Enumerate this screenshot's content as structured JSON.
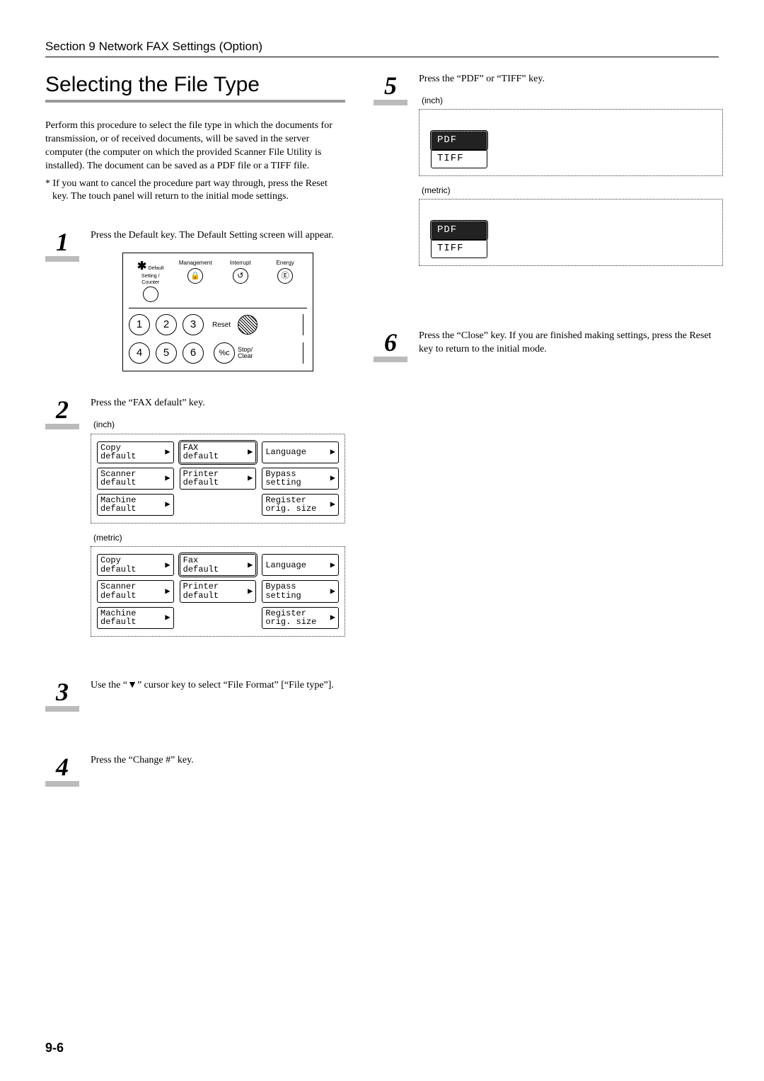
{
  "header": {
    "section": "Section 9  Network FAX Settings (Option)"
  },
  "title": "Selecting the File Type",
  "intro": "Perform this procedure to select the file type in which the documents for transmission, or of received documents, will be saved in the server computer (the computer on which the provided Scanner File Utility is installed). The document can be saved as a PDF file or a TIFF file.",
  "note": "* If you want to cancel the procedure part way through, press the Reset key. The touch panel will return to the initial mode settings.",
  "steps": {
    "s1": {
      "num": "1",
      "text": "Press the Default key. The Default Setting screen will appear."
    },
    "s2": {
      "num": "2",
      "text": "Press the “FAX default” key."
    },
    "s3": {
      "num": "3",
      "text": "Use the “▼” cursor key to select “File Format” [“File type”]."
    },
    "s4": {
      "num": "4",
      "text": "Press the “Change #” key."
    },
    "s5": {
      "num": "5",
      "text": "Press the “PDF” or “TIFF” key."
    },
    "s6": {
      "num": "6",
      "text": "Press the “Close” key. If you are finished making settings, press the Reset key to return to the initial mode."
    }
  },
  "keypad": {
    "top": [
      {
        "label": "Default Setting /\nCounter",
        "glyph": "",
        "prefix": "✱"
      },
      {
        "label": "Management",
        "glyph": "🔒"
      },
      {
        "label": "Interrupt",
        "glyph": "↺"
      },
      {
        "label": "Energy",
        "glyph": "Ⓔ"
      }
    ],
    "nums_row1": [
      "1",
      "2",
      "3"
    ],
    "nums_row2": [
      "4",
      "5",
      "6"
    ],
    "reset": "Reset",
    "stop_glyph": "%c",
    "stop_label": "Stop/\nClear"
  },
  "units": {
    "inch": "(inch)",
    "metric": "(metric)"
  },
  "fax_panel_inch": [
    [
      "Copy\ndefault",
      "FAX\ndefault",
      "Language"
    ],
    [
      "Scanner\ndefault",
      "Printer\ndefault",
      "Bypass\nsetting"
    ],
    [
      "Machine\ndefault",
      "",
      "Register\norig. size"
    ]
  ],
  "fax_panel_metric": [
    [
      "Copy\ndefault",
      "Fax\ndefault",
      "Language"
    ],
    [
      "Scanner\ndefault",
      "Printer\ndefault",
      "Bypass\nsetting"
    ],
    [
      "Machine\ndefault",
      "",
      "Register\norig. size"
    ]
  ],
  "fax_panel_selected": "FAX\ndefault",
  "file_opts": {
    "pdf": "PDF",
    "tiff": "TIFF",
    "selected": "PDF"
  },
  "page_number": "9-6",
  "colors": {
    "rule": "#999999",
    "step_bar": "#bbbbbb",
    "text": "#000000"
  }
}
